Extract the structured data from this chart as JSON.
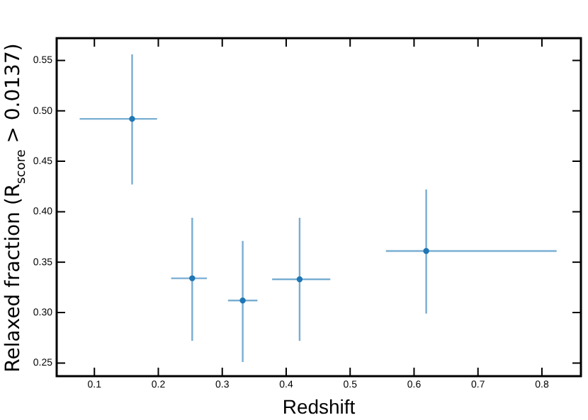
{
  "chart_data": {
    "type": "scatter",
    "xlabel": "Redshift",
    "ylabel": "Relaxed fraction (R$_{score}$ > 0.0137)",
    "x": [
      0.159,
      0.253,
      0.332,
      0.421,
      0.619
    ],
    "series": [
      {
        "color": "#1f77b4",
        "values": [
          0.492,
          0.334,
          0.312,
          0.333,
          0.361
        ],
        "errors": [
          [
            0.427,
            0.556
          ],
          [
            0.272,
            0.394
          ],
          [
            0.251,
            0.371
          ],
          [
            0.272,
            0.394
          ],
          [
            0.299,
            0.422
          ]
        ],
        "xerrors": [
          [
            0.077,
            0.198
          ],
          [
            0.22,
            0.276
          ],
          [
            0.309,
            0.355
          ],
          [
            0.378,
            0.469
          ],
          [
            0.556,
            0.823
          ]
        ]
      }
    ],
    "xlim": [
      0.041,
      0.861
    ],
    "ylim": [
      0.237,
      0.572
    ],
    "xticks": [
      0.1,
      0.2,
      0.3,
      0.4,
      0.5,
      0.6,
      0.7,
      0.8
    ],
    "yticks": [
      {
        "value": 0.25,
        "label": "0.25"
      },
      {
        "value": 0.3,
        "label": "0.30"
      },
      {
        "value": 0.35,
        "label": "0.35"
      },
      {
        "value": 0.4,
        "label": "0.40"
      },
      {
        "value": 0.45,
        "label": "0.45"
      },
      {
        "value": 0.5,
        "label": "0.50"
      },
      {
        "value": 0.55,
        "label": "0.55"
      }
    ],
    "marker": "circle",
    "grid": false,
    "legend": false
  }
}
